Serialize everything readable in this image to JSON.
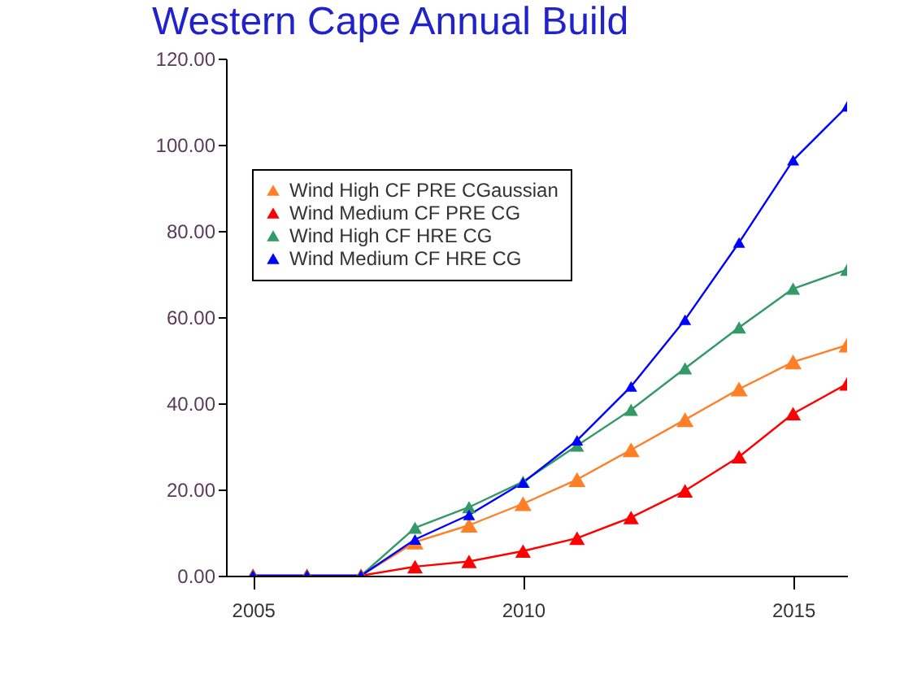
{
  "chart_data": {
    "type": "line",
    "title": "Western Cape Annual Build",
    "x": [
      2005,
      2006,
      2007,
      2008,
      2009,
      2010,
      2011,
      2012,
      2013,
      2014,
      2015,
      2016
    ],
    "series": [
      {
        "name": "Wind High CF PRE CGaussian",
        "color": "#ff7f27",
        "values": [
          0,
          0,
          0,
          7.8,
          11.7,
          16.7,
          22.3,
          29.2,
          36.2,
          43.3,
          49.6,
          53.5
        ]
      },
      {
        "name": "Wind Medium CF PRE CG",
        "color": "#ff0000",
        "values": [
          0,
          0,
          0,
          2.1,
          3.3,
          5.7,
          8.7,
          13.5,
          19.7,
          27.6,
          37.6,
          44.5
        ]
      },
      {
        "name": "Wind High CF HRE CG",
        "color": "#339966",
        "values": [
          0,
          0,
          0,
          11.1,
          15.9,
          21.8,
          30.2,
          38.5,
          48.1,
          57.6,
          66.6,
          71
        ]
      },
      {
        "name": "Wind Medium CF HRE CG",
        "color": "#0000ff",
        "values": [
          0,
          0,
          0,
          8.4,
          14.1,
          21.6,
          31.4,
          43.9,
          59.4,
          77.3,
          96.4,
          108.9
        ]
      }
    ],
    "xlim": [
      2004.5,
      2016
    ],
    "xticks": [
      2005,
      2010,
      2015
    ],
    "ylim": [
      0,
      120
    ],
    "yticks": [
      {
        "value": 0,
        "label": "0.00"
      },
      {
        "value": 20,
        "label": "20.00"
      },
      {
        "value": 40,
        "label": "40.00"
      },
      {
        "value": 60,
        "label": "60.00"
      },
      {
        "value": 80,
        "label": "80.00"
      },
      {
        "value": 100,
        "label": "100.00"
      },
      {
        "value": 120,
        "label": "120.00"
      }
    ],
    "grid": false,
    "legend": "top left",
    "marker": "triangle",
    "line_style": "solid"
  }
}
